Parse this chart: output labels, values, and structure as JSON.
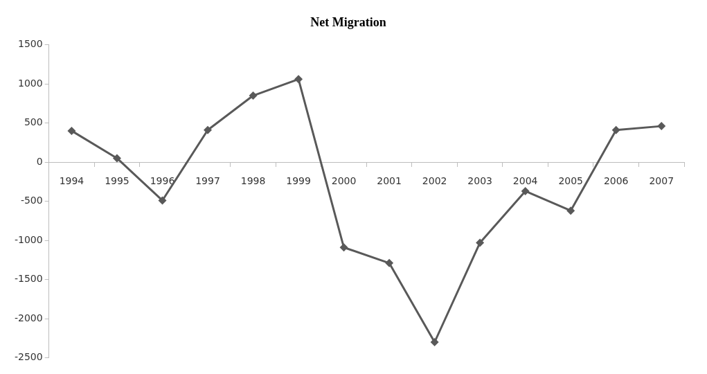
{
  "chart_data": {
    "type": "line",
    "title": "Net Migration",
    "categories": [
      "1994",
      "1995",
      "1996",
      "1997",
      "1998",
      "1999",
      "2000",
      "2001",
      "2002",
      "2003",
      "2004",
      "2005",
      "2006",
      "2007"
    ],
    "series": [
      {
        "color": "#595959",
        "values": [
          400,
          50,
          -490,
          410,
          850,
          1060,
          -1090,
          -1290,
          -2300,
          -1030,
          -370,
          -620,
          410,
          460
        ]
      }
    ],
    "ylim": [
      -2500,
      1500
    ],
    "yticks": [
      -2500,
      -2000,
      -1500,
      -1000,
      -500,
      0,
      500,
      1000,
      1500
    ],
    "grid": false,
    "legend": false,
    "marker": "diamond",
    "line_style": "solid"
  }
}
